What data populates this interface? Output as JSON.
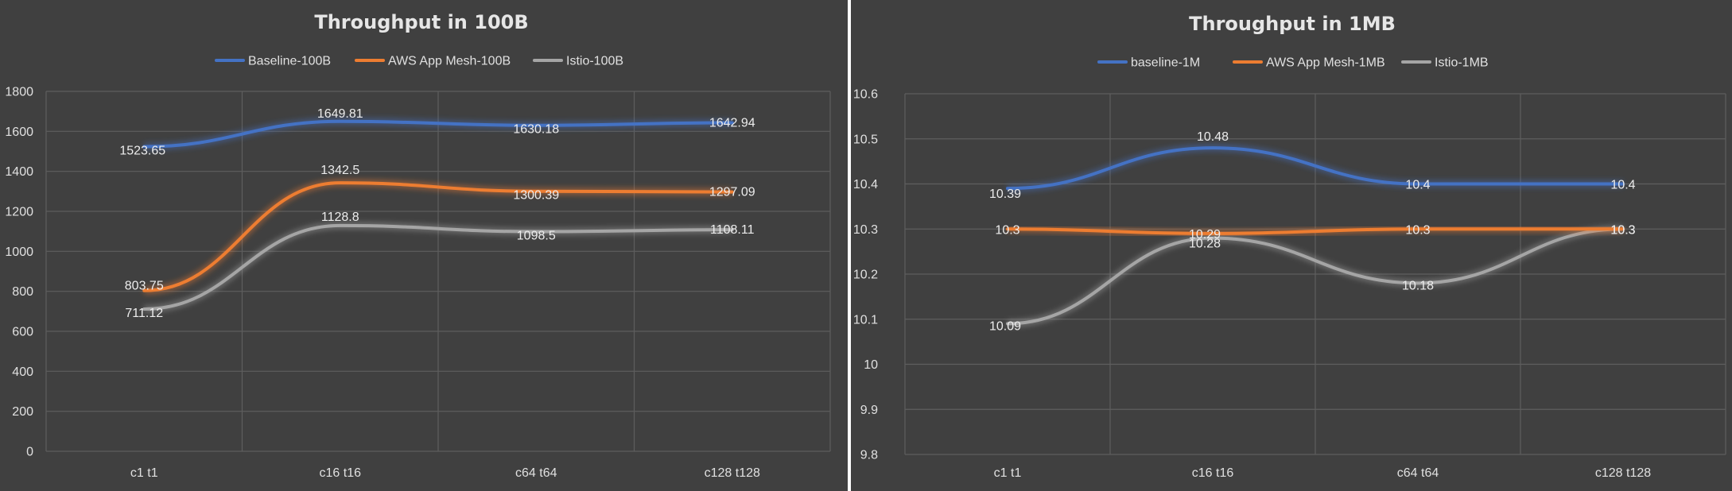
{
  "chart_data": [
    {
      "type": "line",
      "title": "Throughput in 100B",
      "categories": [
        "c1 t1",
        "c16 t16",
        "c64 t64",
        "c128 t128"
      ],
      "ylim": [
        0,
        1800
      ],
      "yticks": [
        0,
        200,
        400,
        600,
        800,
        1000,
        1200,
        1400,
        1600,
        1800
      ],
      "ytick_labels": [
        "0",
        "200",
        "400",
        "600",
        "800",
        "1000",
        "1200",
        "1400",
        "1600",
        "1800"
      ],
      "grid": true,
      "legend_position": "top",
      "series": [
        {
          "name": "Baseline-100B",
          "color": "#4472c4",
          "values": [
            1523.65,
            1649.81,
            1630.18,
            1642.94
          ],
          "labels": [
            "1523.65",
            "1649.81",
            "1630.18",
            "1642.94"
          ]
        },
        {
          "name": "AWS App Mesh-100B",
          "color": "#ed7d31",
          "values": [
            803.75,
            1342.5,
            1300.39,
            1297.09
          ],
          "labels": [
            "803.75",
            "1342.5",
            "1300.39",
            "1297.09"
          ]
        },
        {
          "name": "Istio-100B",
          "color": "#a5a5a5",
          "values": [
            711.12,
            1128.8,
            1098.5,
            1108.11
          ],
          "labels": [
            "711.12",
            "1128.8",
            "1098.5",
            "1108.11"
          ]
        }
      ]
    },
    {
      "type": "line",
      "title": "Throughput in 1MB",
      "categories": [
        "c1 t1",
        "c16 t16",
        "c64 t64",
        "c128 t128"
      ],
      "ylim": [
        9.8,
        10.6
      ],
      "yticks": [
        9.8,
        9.9,
        10.0,
        10.1,
        10.2,
        10.3,
        10.4,
        10.5,
        10.6
      ],
      "ytick_labels": [
        "9.8",
        "9.9",
        "10",
        "10.1",
        "10.2",
        "10.3",
        "10.4",
        "10.5",
        "10.6"
      ],
      "grid": true,
      "legend_position": "top",
      "series": [
        {
          "name": "baseline-1M",
          "color": "#4472c4",
          "values": [
            10.39,
            10.48,
            10.4,
            10.4
          ],
          "labels": [
            "10.39",
            "10.48",
            "10.4",
            "10.4"
          ]
        },
        {
          "name": "AWS App Mesh-1MB",
          "color": "#ed7d31",
          "values": [
            10.3,
            10.29,
            10.3,
            10.3
          ],
          "labels": [
            "10.3",
            "10.29",
            "10.3",
            "10.3"
          ]
        },
        {
          "name": "Istio-1MB",
          "color": "#a5a5a5",
          "values": [
            10.09,
            10.28,
            10.18,
            10.3
          ],
          "labels": [
            "10.09",
            "10.28",
            "10.18",
            "10.3"
          ]
        }
      ]
    }
  ]
}
